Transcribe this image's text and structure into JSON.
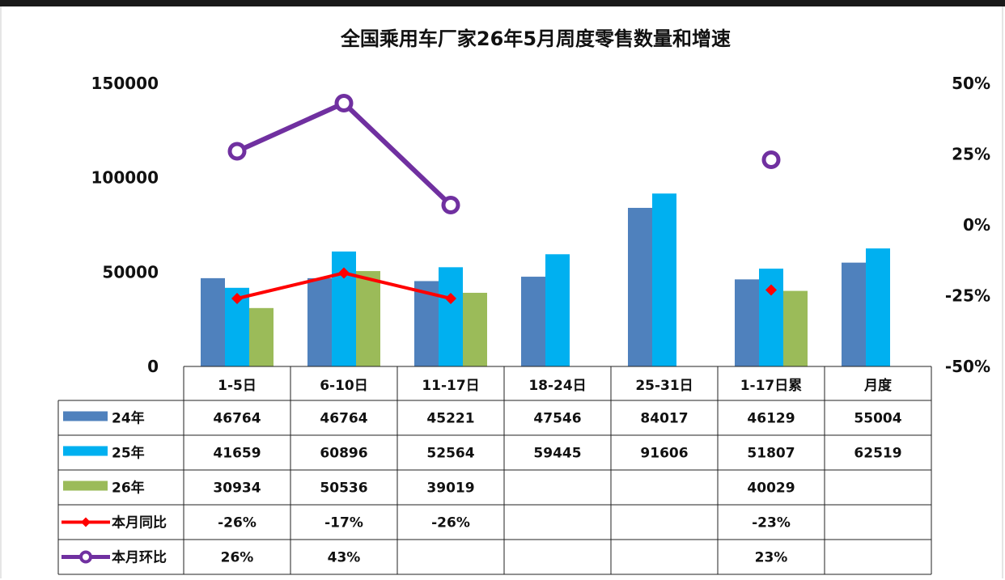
{
  "chart_data": {
    "type": "bar",
    "title": "全国乘用车厂家26年5月周度零售数量和增速",
    "categories": [
      "1-5日",
      "6-10日",
      "11-17日",
      "18-24日",
      "25-31日",
      "1-17日累",
      "月度"
    ],
    "y_left": {
      "ticks": [
        "150000",
        "100000",
        "50000",
        "0"
      ],
      "ylim": [
        0,
        150000
      ]
    },
    "y_right": {
      "ticks": [
        "50%",
        "25%",
        "0%",
        "-25%",
        "-50%"
      ],
      "ylim": [
        -0.5,
        0.5
      ]
    },
    "series": [
      {
        "name": "24年",
        "kind": "bar",
        "color": "#4f81bd",
        "values": [
          46764,
          46764,
          45221,
          47546,
          84017,
          46129,
          55004
        ],
        "labels": [
          "46764",
          "46764",
          "45221",
          "47546",
          "84017",
          "46129",
          "55004"
        ]
      },
      {
        "name": "25年",
        "kind": "bar",
        "color": "#00b0f0",
        "values": [
          41659,
          60896,
          52564,
          59445,
          91606,
          51807,
          62519
        ],
        "labels": [
          "41659",
          "60896",
          "52564",
          "59445",
          "91606",
          "51807",
          "62519"
        ]
      },
      {
        "name": "26年",
        "kind": "bar",
        "color": "#9bbb59",
        "values": [
          30934,
          50536,
          39019,
          null,
          null,
          40029,
          null
        ],
        "labels": [
          "30934",
          "50536",
          "39019",
          "",
          "",
          "40029",
          ""
        ]
      },
      {
        "name": "本月同比",
        "kind": "line",
        "axis": "right",
        "color": "#ff0000",
        "marker": "diamond",
        "values": [
          -0.26,
          -0.17,
          -0.26,
          null,
          null,
          -0.23,
          null
        ],
        "labels": [
          "-26%",
          "-17%",
          "-26%",
          "",
          "",
          "-23%",
          ""
        ]
      },
      {
        "name": "本月环比",
        "kind": "line",
        "axis": "right",
        "color": "#7030a0",
        "marker": "circle",
        "values": [
          0.26,
          0.43,
          0.07,
          null,
          null,
          0.23,
          null
        ],
        "labels": [
          "26%",
          "43%",
          "",
          "",
          "",
          "23%",
          ""
        ]
      }
    ],
    "legend": "data-table-left",
    "grid": false
  }
}
